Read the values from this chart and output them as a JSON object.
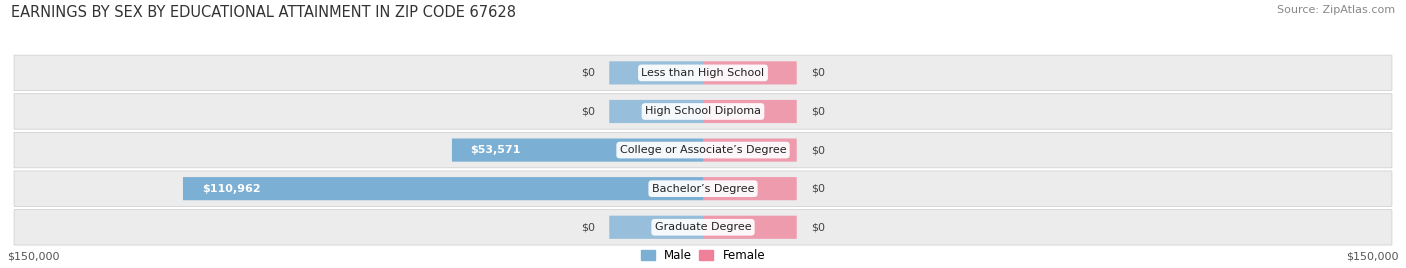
{
  "title": "EARNINGS BY SEX BY EDUCATIONAL ATTAINMENT IN ZIP CODE 67628",
  "source": "Source: ZipAtlas.com",
  "categories": [
    "Less than High School",
    "High School Diploma",
    "College or Associate’s Degree",
    "Bachelor’s Degree",
    "Graduate Degree"
  ],
  "male_values": [
    0,
    0,
    53571,
    110962,
    0
  ],
  "female_values": [
    0,
    0,
    0,
    0,
    0
  ],
  "male_color": "#7bafd4",
  "female_color": "#f08099",
  "row_bg_color_odd": "#ebebeb",
  "row_bg_color_even": "#e0e0e0",
  "max_value": 150000,
  "stub_size": 20000,
  "title_fontsize": 10.5,
  "source_fontsize": 8,
  "label_fontsize": 8,
  "axis_label_fontsize": 8,
  "background_color": "#ffffff"
}
